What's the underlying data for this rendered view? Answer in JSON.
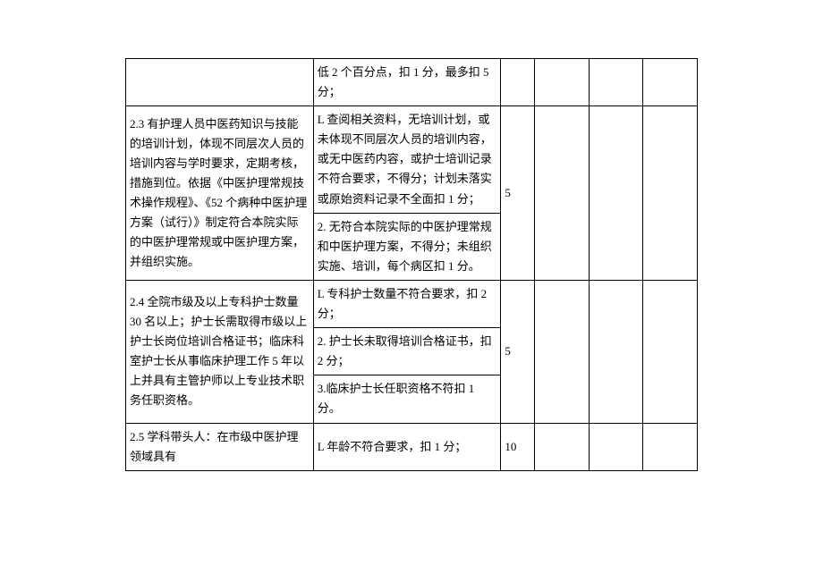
{
  "table": {
    "columns": [
      "criteria",
      "deduction",
      "score",
      "blank1",
      "blank2",
      "blank3"
    ],
    "rows": [
      {
        "criteria": "",
        "deduction": "低 2 个百分点，扣 1 分，最多扣 5 分；",
        "score": "",
        "blank1": "",
        "blank2": "",
        "blank3": ""
      },
      {
        "criteria": "2.3 有护理人员中医药知识与技能的培训计划，体现不同层次人员的培训内容与学时要求，定期考核，措施到位。依据《中医护理常规技术操作规程》、《52 个病种中医护理方案（试行）》制定符合本院实际的中医护理常规或中医护理方案，并组织实施。",
        "deduction_a": "L 查阅相关资料，无培训计划，或未体现不同层次人员的培训内容，或无中医药内容，或护士培训记录不符合要求，不得分；计划未落实或原始资料记录不全面扣 1 分；",
        "deduction_b": "2. 无符合本院实际的中医护理常规和中医护理方案，不得分；未组织实施、培训，每个病区扣 1 分。",
        "score": "5",
        "blank1": "",
        "blank2": "",
        "blank3": ""
      },
      {
        "criteria": "2.4 全院市级及以上专科护士数量 30 名以上；护士长需取得市级以上护士长岗位培训合格证书；临床科室护士长从事临床护理工作 5 年以上并具有主管护师以上专业技术职务任职资格。",
        "deduction_a": "L 专科护士数量不符合要求，扣 2 分；",
        "deduction_b": "2. 护士长未取得培训合格证书，扣\n2 分；",
        "deduction_c": "3.临床护士长任职资格不符扣 1 分。",
        "score": "5",
        "blank1": "",
        "blank2": "",
        "blank3": ""
      },
      {
        "criteria": "2.5 学科带头人：在市级中医护理领域具有",
        "deduction": "L 年龄不符合要求，扣 1 分；",
        "score": "10",
        "blank1": "",
        "blank2": "",
        "blank3": ""
      }
    ]
  }
}
